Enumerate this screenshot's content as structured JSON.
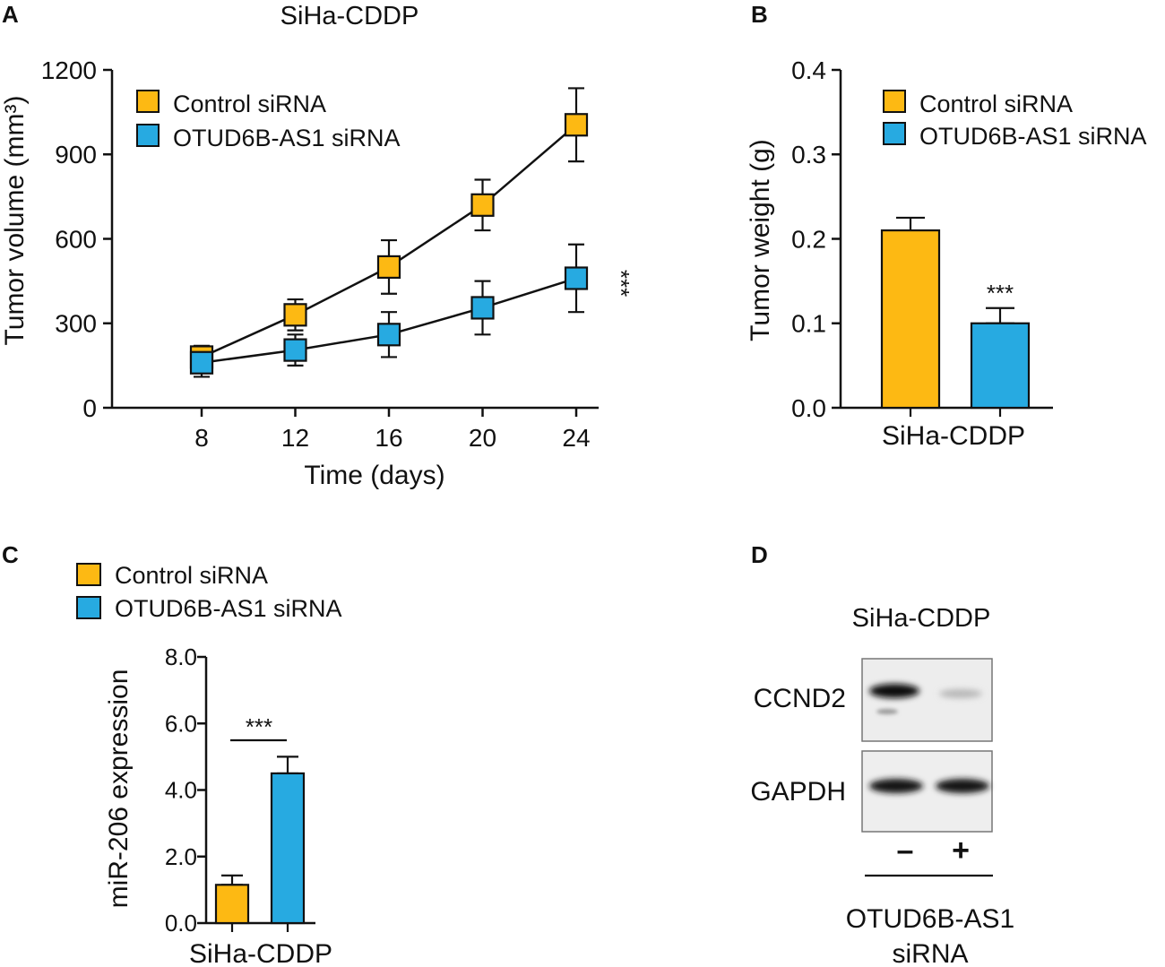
{
  "colors": {
    "control": "#FDB913",
    "otud": "#27AAE1",
    "line": "#111111"
  },
  "panels": {
    "A": {
      "label": "A"
    },
    "B": {
      "label": "B"
    },
    "C": {
      "label": "C"
    },
    "D": {
      "label": "D"
    }
  },
  "chart_data": [
    {
      "panel": "A",
      "type": "line",
      "title": "SiHa-CDDP",
      "xlabel": "Time (days)",
      "ylabel": "Tumor volume (mm³)",
      "x": [
        8,
        12,
        16,
        20,
        24
      ],
      "xticks": [
        "8",
        "12",
        "16",
        "20",
        "24"
      ],
      "yticks": [
        "0",
        "300",
        "600",
        "900",
        "1200"
      ],
      "ylim": [
        0,
        1200
      ],
      "series": [
        {
          "name": "Control siRNA",
          "values": [
            180,
            330,
            500,
            720,
            1005
          ],
          "errors": [
            40,
            55,
            95,
            90,
            130
          ]
        },
        {
          "name": "OTUD6B-AS1 siRNA",
          "values": [
            160,
            205,
            260,
            355,
            460
          ],
          "errors": [
            50,
            55,
            80,
            95,
            120
          ]
        }
      ],
      "significance": "***",
      "legend": "top-left"
    },
    {
      "panel": "B",
      "type": "bar",
      "xlabel": "SiHa-CDDP",
      "ylabel": "Tumor weight (g)",
      "categories": [
        "Control siRNA",
        "OTUD6B-AS1 siRNA"
      ],
      "values": [
        0.21,
        0.1
      ],
      "errors": [
        0.015,
        0.018
      ],
      "yticks": [
        "0.0",
        "0.1",
        "0.2",
        "0.3",
        "0.4"
      ],
      "ylim": [
        0,
        0.4
      ],
      "significance": "***",
      "legend": "top-right"
    },
    {
      "panel": "C",
      "type": "bar",
      "xlabel": "SiHa-CDDP",
      "ylabel": "miR-206 expression",
      "categories": [
        "Control siRNA",
        "OTUD6B-AS1 siRNA"
      ],
      "values": [
        1.15,
        4.5
      ],
      "errors": [
        0.28,
        0.5
      ],
      "yticks": [
        "0.0",
        "2.0",
        "4.0",
        "6.0",
        "8.0"
      ],
      "ylim": [
        0,
        8
      ],
      "significance": "***",
      "legend": "top-left"
    }
  ],
  "blot": {
    "title": "SiHa-CDDP",
    "rows": [
      "CCND2",
      "GAPDH"
    ],
    "lanes": [
      "–",
      "+"
    ],
    "bottom_label_line1": "OTUD6B-AS1",
    "bottom_label_line2": "siRNA"
  }
}
